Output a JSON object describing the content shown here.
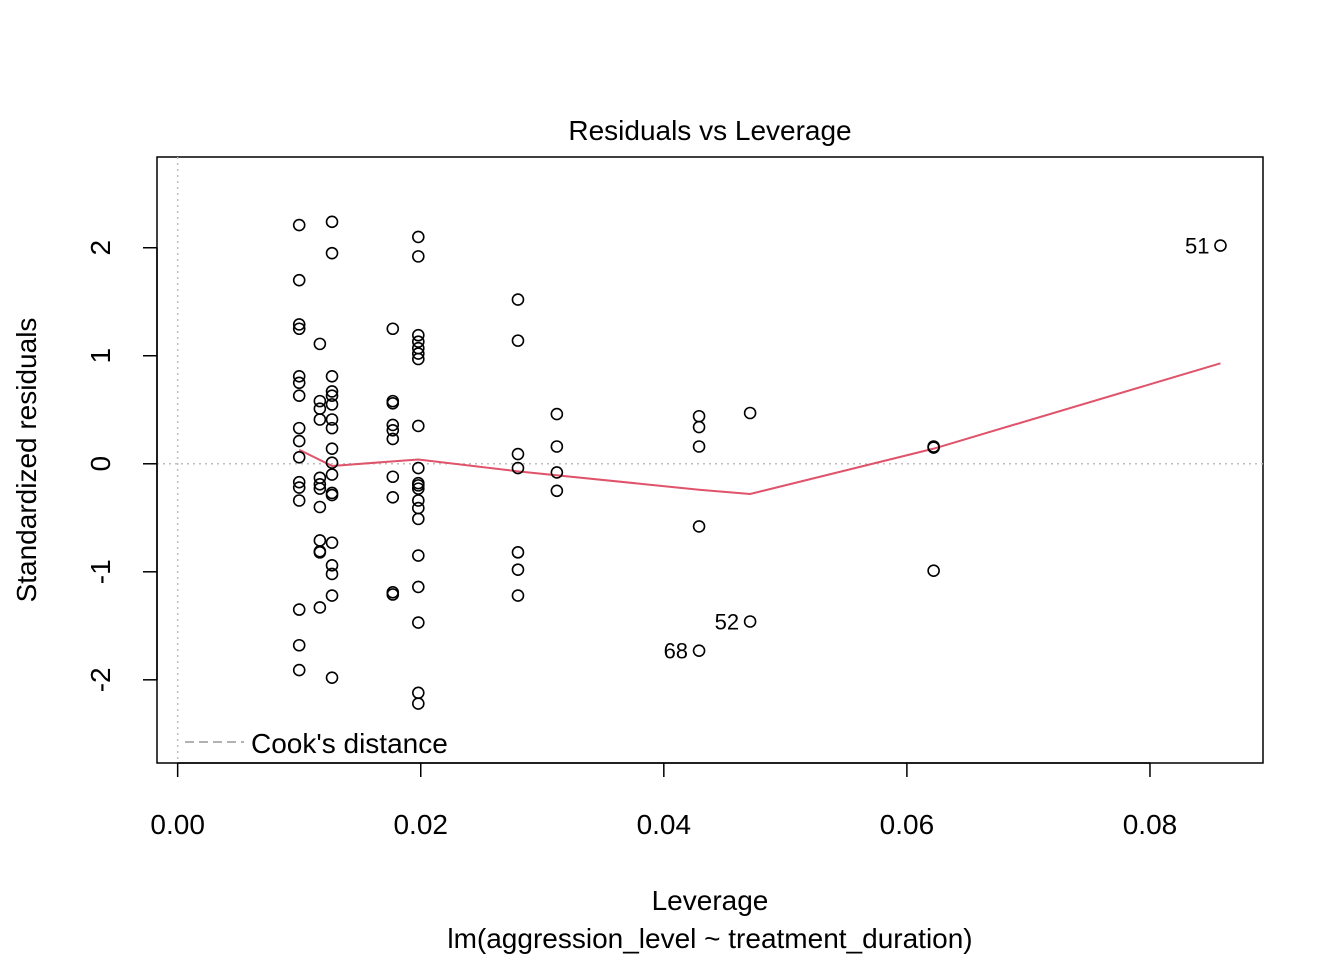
{
  "chart_data": {
    "type": "scatter",
    "title": "Residuals vs Leverage",
    "xlabel": "Leverage",
    "subtitle": "lm(aggression_level ~ treatment_duration)",
    "ylabel": "Standardized residuals",
    "xlim": [
      -0.0017,
      0.0893
    ],
    "ylim": [
      -2.77,
      2.84
    ],
    "x_ticks": [
      0,
      0.02,
      0.04,
      0.06,
      0.08
    ],
    "x_tick_labels": [
      "0.00",
      "0.02",
      "0.04",
      "0.06",
      "0.08"
    ],
    "y_ticks": [
      -2,
      -1,
      0,
      1,
      2
    ],
    "y_tick_labels": [
      "-2",
      "-1",
      "0",
      "1",
      "2"
    ],
    "reference_lines": {
      "horizontal_zero": true,
      "vertical_zero": true
    },
    "legend": {
      "label": "Cook's distance",
      "position": "bottom-left"
    },
    "points": [
      [
        0.01,
        2.21
      ],
      [
        0.01,
        1.7
      ],
      [
        0.01,
        1.29
      ],
      [
        0.01,
        1.25
      ],
      [
        0.01,
        0.81
      ],
      [
        0.01,
        0.75
      ],
      [
        0.01,
        0.63
      ],
      [
        0.01,
        0.33
      ],
      [
        0.01,
        0.21
      ],
      [
        0.01,
        0.06
      ],
      [
        0.01,
        -0.17
      ],
      [
        0.01,
        -0.22
      ],
      [
        0.01,
        -0.34
      ],
      [
        0.01,
        -1.35
      ],
      [
        0.01,
        -1.68
      ],
      [
        0.01,
        -1.91
      ],
      [
        0.0117,
        1.11
      ],
      [
        0.0117,
        0.58
      ],
      [
        0.0117,
        0.51
      ],
      [
        0.0117,
        0.41
      ],
      [
        0.0117,
        -0.13
      ],
      [
        0.0117,
        -0.19
      ],
      [
        0.0117,
        -0.23
      ],
      [
        0.0117,
        -0.4
      ],
      [
        0.0117,
        -0.71
      ],
      [
        0.0117,
        -0.81
      ],
      [
        0.0117,
        -0.82
      ],
      [
        0.0117,
        -1.33
      ],
      [
        0.0127,
        2.24
      ],
      [
        0.0127,
        1.95
      ],
      [
        0.0127,
        0.81
      ],
      [
        0.0127,
        0.67
      ],
      [
        0.0127,
        0.63
      ],
      [
        0.0127,
        0.55
      ],
      [
        0.0127,
        0.41
      ],
      [
        0.0127,
        0.33
      ],
      [
        0.0127,
        0.14
      ],
      [
        0.0127,
        0.01
      ],
      [
        0.0127,
        -0.1
      ],
      [
        0.0127,
        -0.27
      ],
      [
        0.0127,
        -0.29
      ],
      [
        0.0127,
        -0.73
      ],
      [
        0.0127,
        -0.94
      ],
      [
        0.0127,
        -1.02
      ],
      [
        0.0127,
        -1.22
      ],
      [
        0.0127,
        -1.98
      ],
      [
        0.0177,
        1.25
      ],
      [
        0.0177,
        0.58
      ],
      [
        0.0177,
        0.56
      ],
      [
        0.0177,
        0.36
      ],
      [
        0.0177,
        0.31
      ],
      [
        0.0177,
        0.23
      ],
      [
        0.0177,
        -0.12
      ],
      [
        0.0177,
        -0.31
      ],
      [
        0.0177,
        -1.19
      ],
      [
        0.0177,
        -1.21
      ],
      [
        0.0198,
        2.1
      ],
      [
        0.0198,
        1.92
      ],
      [
        0.0198,
        1.19
      ],
      [
        0.0198,
        1.13
      ],
      [
        0.0198,
        1.07
      ],
      [
        0.0198,
        1.02
      ],
      [
        0.0198,
        0.97
      ],
      [
        0.0198,
        0.35
      ],
      [
        0.0198,
        -0.04
      ],
      [
        0.0198,
        -0.18
      ],
      [
        0.0198,
        -0.2
      ],
      [
        0.0198,
        -0.23
      ],
      [
        0.0198,
        -0.34
      ],
      [
        0.0198,
        -0.41
      ],
      [
        0.0198,
        -0.51
      ],
      [
        0.0198,
        -0.85
      ],
      [
        0.0198,
        -1.14
      ],
      [
        0.0198,
        -1.47
      ],
      [
        0.0198,
        -2.12
      ],
      [
        0.0198,
        -2.22
      ],
      [
        0.028,
        1.52
      ],
      [
        0.028,
        1.14
      ],
      [
        0.028,
        0.09
      ],
      [
        0.028,
        -0.04
      ],
      [
        0.028,
        -0.82
      ],
      [
        0.028,
        -0.98
      ],
      [
        0.028,
        -1.22
      ],
      [
        0.0312,
        0.46
      ],
      [
        0.0312,
        0.16
      ],
      [
        0.0312,
        -0.08
      ],
      [
        0.0312,
        -0.25
      ],
      [
        0.0429,
        0.44
      ],
      [
        0.0429,
        0.34
      ],
      [
        0.0429,
        0.16
      ],
      [
        0.0429,
        -0.58
      ],
      [
        0.0429,
        -1.73
      ],
      [
        0.0471,
        0.47
      ],
      [
        0.0471,
        -1.46
      ],
      [
        0.0622,
        0.16
      ],
      [
        0.0622,
        0.15
      ],
      [
        0.0622,
        -0.99
      ],
      [
        0.0858,
        2.02
      ]
    ],
    "labeled_points": [
      {
        "label": "51",
        "x": 0.0858,
        "y": 2.02
      },
      {
        "label": "52",
        "x": 0.0471,
        "y": -1.46
      },
      {
        "label": "68",
        "x": 0.0429,
        "y": -1.73
      }
    ],
    "smoother": {
      "x": [
        0.01,
        0.0127,
        0.0198,
        0.028,
        0.0429,
        0.0471,
        0.0622,
        0.0858
      ],
      "y": [
        0.13,
        -0.02,
        0.04,
        -0.07,
        -0.24,
        -0.28,
        0.14,
        0.93
      ]
    },
    "colors": {
      "points": "#000000",
      "smoother": "#DF536B",
      "reference": "#BEBEBE",
      "legend_text": "#999999"
    }
  }
}
